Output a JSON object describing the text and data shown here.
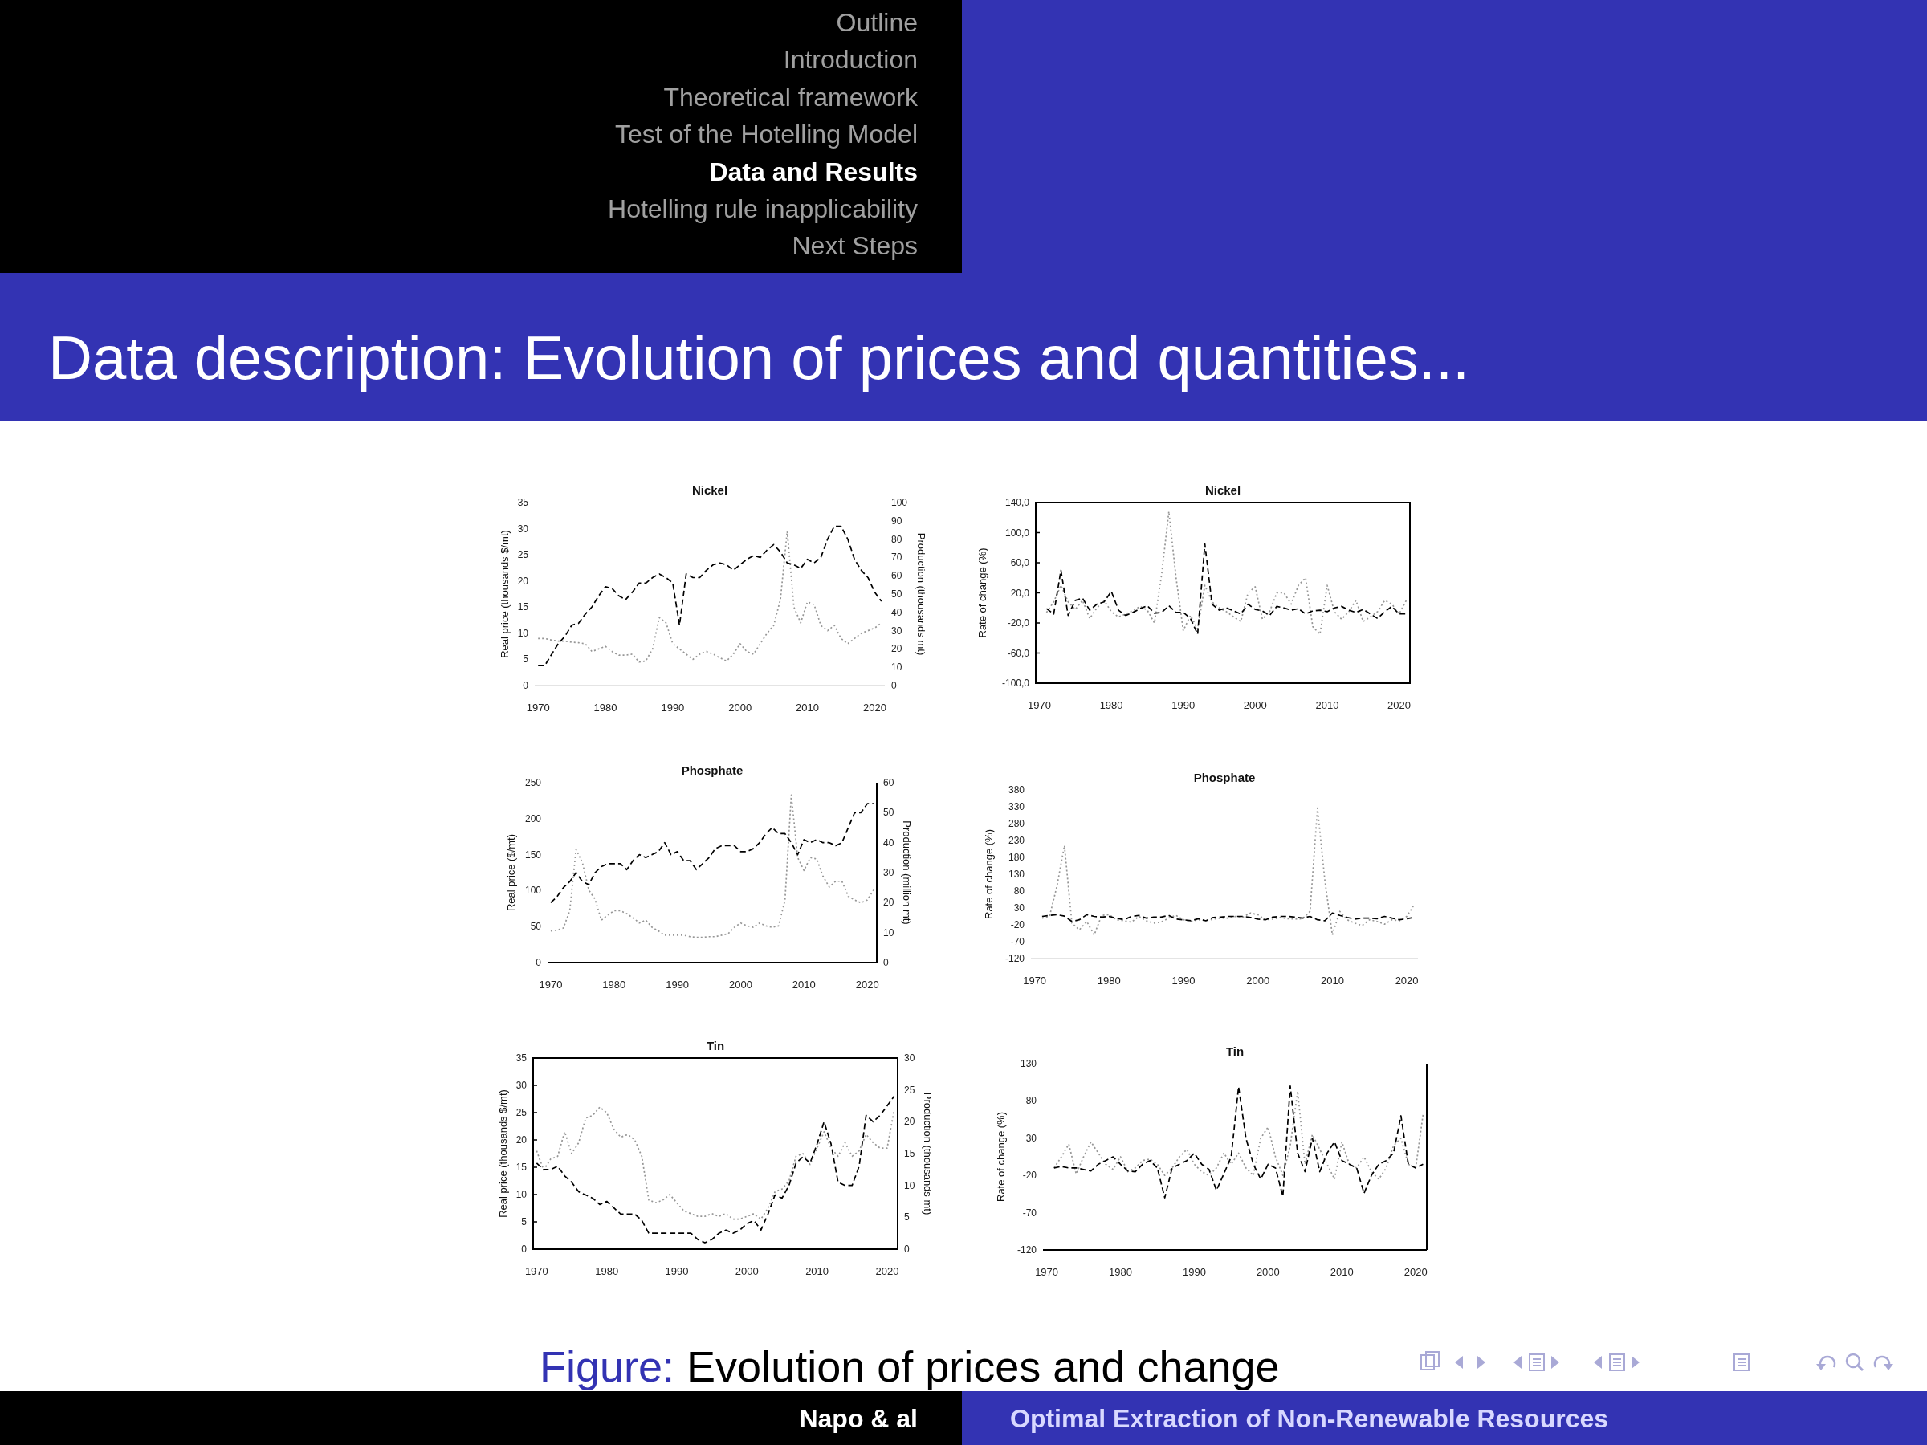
{
  "chart_data": [
    {
      "type": "other",
      "title": "Data description: Evolution of prices and quantities...",
      "annotations": [
        "Outline",
        "Introduction",
        "Theoretical framework",
        "Test of the Hotelling Model",
        "Data and Results",
        "Hotelling rule inapplicability",
        "Next Steps"
      ]
    },
    {
      "type": "line",
      "title": "Nickel",
      "ylabel": "Real price (thousands $/mt)",
      "y2label": "Production (thousands mt)",
      "x": [
        1970,
        1971,
        1972,
        1973,
        1974,
        1975,
        1976,
        1977,
        1978,
        1979,
        1980,
        1981,
        1982,
        1983,
        1984,
        1985,
        1986,
        1987,
        1988,
        1989,
        1990,
        1991,
        1992,
        1993,
        1994,
        1995,
        1996,
        1997,
        1998,
        1999,
        2000,
        2001,
        2002,
        2003,
        2004,
        2005,
        2006,
        2007,
        2008,
        2009,
        2010,
        2011,
        2012,
        2013,
        2014,
        2015,
        2016,
        2017,
        2018,
        2019,
        2020,
        2021
      ],
      "xlim": [
        1969.5,
        2021.5
      ],
      "xticks": [
        1970,
        1980,
        1990,
        2000,
        2010,
        2020
      ],
      "ylim": [
        0,
        35
      ],
      "yticks": [
        0,
        5,
        10,
        15,
        20,
        25,
        30,
        35
      ],
      "y2lim": [
        0,
        100
      ],
      "y2ticks": [
        0,
        10,
        20,
        30,
        40,
        50,
        60,
        70,
        80,
        90,
        100
      ],
      "series": [
        {
          "color": "#969696",
          "line_style": "dotted",
          "values": [
            9,
            9,
            8.7,
            8.5,
            8.5,
            8.3,
            8.2,
            8,
            6.5,
            7,
            7.5,
            6.5,
            5.8,
            5.8,
            6,
            4.5,
            4.7,
            7,
            13,
            12,
            8,
            7,
            6,
            5,
            6,
            6.5,
            6,
            5.3,
            4.7,
            6,
            8,
            6.5,
            6,
            8,
            10,
            11.5,
            16.5,
            29.5,
            15,
            12,
            16,
            15.5,
            11.5,
            10.5,
            11.5,
            9,
            8,
            9,
            10,
            10.5,
            11,
            12
          ]
        },
        {
          "color": "#000000",
          "line_style": "dashed",
          "axis": "y2",
          "values": [
            11,
            11,
            17,
            23,
            27,
            33,
            34,
            39,
            43,
            49,
            54,
            53,
            49,
            47,
            51,
            56,
            56,
            59,
            61,
            59,
            56,
            33,
            61,
            59,
            59,
            63,
            66,
            67,
            66,
            63,
            66,
            69,
            71,
            70,
            74,
            77,
            73,
            67,
            66,
            64,
            69,
            67,
            70,
            80,
            87,
            87,
            80,
            69,
            63,
            59,
            51,
            46
          ]
        }
      ]
    },
    {
      "type": "line",
      "title": "Nickel",
      "ylabel": "Rate of change (%)",
      "x": [
        1971,
        1972,
        1973,
        1974,
        1975,
        1976,
        1977,
        1978,
        1979,
        1980,
        1981,
        1982,
        1983,
        1984,
        1985,
        1986,
        1987,
        1988,
        1989,
        1990,
        1991,
        1992,
        1993,
        1994,
        1995,
        1996,
        1997,
        1998,
        1999,
        2000,
        2001,
        2002,
        2003,
        2004,
        2005,
        2006,
        2007,
        2008,
        2009,
        2010,
        2011,
        2012,
        2013,
        2014,
        2015,
        2016,
        2017,
        2018,
        2019,
        2020,
        2021
      ],
      "xlim": [
        1969.5,
        2021.5
      ],
      "xticks": [
        1970,
        1980,
        1990,
        2000,
        2010,
        2020
      ],
      "ylim": [
        -100,
        140
      ],
      "yticks": [
        {
          "value": -100,
          "label": "-100,0"
        },
        {
          "value": -60,
          "label": "-60,0"
        },
        {
          "value": -20,
          "label": "-20,0"
        },
        {
          "value": 20,
          "label": "20,0"
        },
        {
          "value": 60,
          "label": "60,0"
        },
        {
          "value": 100,
          "label": "100,0"
        },
        {
          "value": 140,
          "label": "140,0"
        }
      ],
      "series": [
        {
          "color": "#969696",
          "line_style": "dotted",
          "values": [
            -6,
            8,
            30,
            8,
            -2,
            10,
            -14,
            0,
            10,
            -5,
            -12,
            -8,
            -4,
            2,
            -3,
            -20,
            45,
            128,
            40,
            -30,
            -10,
            -28,
            30,
            8,
            0,
            -5,
            -12,
            -18,
            20,
            28,
            -15,
            -5,
            20,
            20,
            5,
            30,
            40,
            -25,
            -35,
            30,
            -5,
            -15,
            -5,
            10,
            -18,
            -12,
            -5,
            10,
            5,
            -8,
            10
          ]
        },
        {
          "color": "#000000",
          "line_style": "dashed",
          "values": [
            -1,
            -8,
            50,
            -10,
            10,
            13,
            -3,
            5,
            8,
            22,
            -3,
            -10,
            -6,
            -1,
            3,
            -7,
            -6,
            3,
            -6,
            -6,
            -14,
            -35,
            85,
            5,
            -3,
            0,
            -4,
            -8,
            5,
            -2,
            -4,
            -10,
            2,
            0,
            -3,
            -1,
            -8,
            -4,
            -3,
            -5,
            0,
            2,
            -3,
            -6,
            -2,
            -8,
            -14,
            -5,
            2,
            -8,
            -8
          ]
        }
      ]
    },
    {
      "type": "line",
      "title": "Phosphate",
      "ylabel": "Real price ($/mt)",
      "y2label": "Production (million mt)",
      "x": [
        1970,
        1971,
        1972,
        1973,
        1974,
        1975,
        1976,
        1977,
        1978,
        1979,
        1980,
        1981,
        1982,
        1983,
        1984,
        1985,
        1986,
        1987,
        1988,
        1989,
        1990,
        1991,
        1992,
        1993,
        1994,
        1995,
        1996,
        1997,
        1998,
        1999,
        2000,
        2001,
        2002,
        2003,
        2004,
        2005,
        2006,
        2007,
        2008,
        2009,
        2010,
        2011,
        2012,
        2013,
        2014,
        2015,
        2016,
        2017,
        2018,
        2019,
        2020,
        2021
      ],
      "xlim": [
        1969.5,
        2021.5
      ],
      "xticks": [
        1970,
        1980,
        1990,
        2000,
        2010,
        2020
      ],
      "ylim": [
        0,
        250
      ],
      "yticks": [
        0,
        50,
        100,
        150,
        200,
        250
      ],
      "y2lim": [
        0,
        60
      ],
      "y2ticks": [
        0,
        10,
        20,
        30,
        40,
        50,
        60
      ],
      "series": [
        {
          "color": "#969696",
          "line_style": "dotted",
          "values": [
            44,
            45,
            48,
            72,
            157,
            139,
            101,
            88,
            59,
            66,
            72,
            72,
            68,
            62,
            55,
            59,
            49,
            44,
            38,
            38,
            38,
            38,
            36,
            35,
            35,
            36,
            36,
            38,
            40,
            49,
            55,
            51,
            49,
            55,
            51,
            49,
            51,
            87,
            233,
            146,
            128,
            146,
            144,
            120,
            105,
            113,
            113,
            92,
            87,
            83,
            87,
            101
          ]
        },
        {
          "color": "#000000",
          "line_style": "dashed",
          "axis": "y2",
          "values": [
            20,
            22,
            25,
            27,
            30,
            27,
            26,
            30,
            32,
            33,
            33,
            33,
            31,
            34,
            36,
            35,
            36,
            37,
            40,
            36,
            37,
            34,
            34,
            31,
            33,
            35,
            38,
            39,
            39,
            39,
            37,
            37,
            38,
            40,
            43,
            45,
            43,
            43,
            40,
            36,
            41,
            40,
            41,
            40,
            40,
            39,
            40,
            45,
            50,
            50,
            53,
            53
          ]
        }
      ]
    },
    {
      "type": "line",
      "title": "Phosphate",
      "ylabel": "Rate of change (%)",
      "x": [
        1971,
        1972,
        1973,
        1974,
        1975,
        1976,
        1977,
        1978,
        1979,
        1980,
        1981,
        1982,
        1983,
        1984,
        1985,
        1986,
        1987,
        1988,
        1989,
        1990,
        1991,
        1992,
        1993,
        1994,
        1995,
        1996,
        1997,
        1998,
        1999,
        2000,
        2001,
        2002,
        2003,
        2004,
        2005,
        2006,
        2007,
        2008,
        2009,
        2010,
        2011,
        2012,
        2013,
        2014,
        2015,
        2016,
        2017,
        2018,
        2019,
        2020,
        2021
      ],
      "xlim": [
        1969.5,
        2021.5
      ],
      "xticks": [
        1970,
        1980,
        1990,
        2000,
        2010,
        2020
      ],
      "ylim": [
        -120,
        380
      ],
      "yticks": [
        -120,
        -70,
        -20,
        30,
        80,
        130,
        180,
        230,
        280,
        330,
        380
      ],
      "series": [
        {
          "color": "#969696",
          "line_style": "dotted",
          "values": [
            0,
            5,
            95,
            215,
            -15,
            -35,
            -10,
            -50,
            8,
            10,
            -5,
            -8,
            -12,
            5,
            -8,
            -15,
            -12,
            0,
            8,
            -5,
            -10,
            -5,
            -8,
            -3,
            0,
            0,
            5,
            3,
            15,
            10,
            -5,
            -3,
            2,
            -2,
            -3,
            -2,
            20,
            326,
            110,
            -50,
            20,
            -5,
            -15,
            -22,
            -5,
            -10,
            -18,
            -5,
            -8,
            5,
            40
          ]
        },
        {
          "color": "#000000",
          "line_style": "dashed",
          "values": [
            5,
            8,
            10,
            6,
            -10,
            -5,
            10,
            5,
            3,
            5,
            0,
            -5,
            5,
            8,
            0,
            3,
            3,
            8,
            -3,
            -5,
            -8,
            -2,
            -8,
            2,
            3,
            5,
            5,
            5,
            2,
            -3,
            -5,
            3,
            5,
            5,
            3,
            0,
            5,
            -5,
            -8,
            15,
            8,
            2,
            -3,
            0,
            0,
            -2,
            5,
            0,
            -5,
            -2,
            2
          ]
        }
      ]
    },
    {
      "type": "line",
      "title": "Tin",
      "ylabel": "Real price (thousands $/mt)",
      "y2label": "Production (thousands mt)",
      "x": [
        1970,
        1971,
        1972,
        1973,
        1974,
        1975,
        1976,
        1977,
        1978,
        1979,
        1980,
        1981,
        1982,
        1983,
        1984,
        1985,
        1986,
        1987,
        1988,
        1989,
        1990,
        1991,
        1992,
        1993,
        1994,
        1995,
        1996,
        1997,
        1998,
        1999,
        2000,
        2001,
        2002,
        2003,
        2004,
        2005,
        2006,
        2007,
        2008,
        2009,
        2010,
        2011,
        2012,
        2013,
        2014,
        2015,
        2016,
        2017,
        2018,
        2019,
        2020,
        2021
      ],
      "xlim": [
        1969.5,
        2021.5
      ],
      "xticks": [
        1970,
        1980,
        1990,
        2000,
        2010,
        2020
      ],
      "ylim": [
        0,
        35
      ],
      "yticks": [
        0,
        5,
        10,
        15,
        20,
        25,
        30,
        35
      ],
      "y2lim": [
        0,
        30
      ],
      "y2ticks": [
        0,
        5,
        10,
        15,
        20,
        25,
        30
      ],
      "series": [
        {
          "color": "#969696",
          "line_style": "dotted",
          "values": [
            18,
            14.5,
            16.5,
            17,
            21.5,
            17.5,
            19.5,
            24,
            24.5,
            26,
            25,
            22,
            20.5,
            21,
            20,
            17,
            9,
            8.5,
            9,
            10,
            8.5,
            7,
            6.5,
            6,
            6,
            6.5,
            6,
            6.5,
            5.5,
            5.5,
            6,
            6.5,
            5.5,
            7.5,
            10.5,
            11,
            12.5,
            17,
            17.5,
            15.5,
            18.5,
            21.5,
            18.5,
            17,
            19.5,
            17,
            18,
            21,
            19.5,
            18.5,
            18.5,
            25.5
          ]
        },
        {
          "color": "#000000",
          "line_style": "dashed",
          "axis": "y2",
          "values": [
            13.5,
            12.5,
            12.5,
            13,
            11.5,
            10.5,
            9,
            8.5,
            8,
            7,
            7.5,
            6.5,
            5.5,
            5.5,
            5.5,
            4.5,
            2.5,
            2.5,
            2.5,
            2.5,
            2.5,
            2.5,
            2.5,
            1.5,
            1,
            1.5,
            2.5,
            3,
            2.5,
            3,
            4,
            4.5,
            3,
            5.5,
            8.5,
            8,
            10,
            13.5,
            14.5,
            13.5,
            16.5,
            20,
            16.5,
            10.5,
            10,
            10,
            13,
            21,
            20,
            21,
            22.5,
            24
          ]
        }
      ]
    },
    {
      "type": "line",
      "title": "Tin",
      "ylabel": "Rate of change (%)",
      "x": [
        1971,
        1972,
        1973,
        1974,
        1975,
        1976,
        1977,
        1978,
        1979,
        1980,
        1981,
        1982,
        1983,
        1984,
        1985,
        1986,
        1987,
        1988,
        1989,
        1990,
        1991,
        1992,
        1993,
        1994,
        1995,
        1996,
        1997,
        1998,
        1999,
        2000,
        2001,
        2002,
        2003,
        2004,
        2005,
        2006,
        2007,
        2008,
        2009,
        2010,
        2011,
        2012,
        2013,
        2014,
        2015,
        2016,
        2017,
        2018,
        2019,
        2020,
        2021
      ],
      "xlim": [
        1969.5,
        2021.5
      ],
      "xticks": [
        1970,
        1980,
        1990,
        2000,
        2010,
        2020
      ],
      "ylim": [
        -120,
        130
      ],
      "yticks": [
        -120,
        -70,
        -20,
        30,
        80,
        130
      ],
      "series": [
        {
          "color": "#969696",
          "line_style": "dotted",
          "values": [
            -10,
            5,
            22,
            -18,
            5,
            25,
            10,
            -5,
            -12,
            5,
            -15,
            -10,
            0,
            2,
            -5,
            -20,
            -10,
            5,
            15,
            -5,
            -15,
            -20,
            -10,
            10,
            -5,
            10,
            -10,
            -20,
            30,
            45,
            5,
            -20,
            20,
            93,
            -5,
            35,
            15,
            -5,
            -25,
            25,
            -5,
            -10,
            5,
            -15,
            -25,
            -10,
            20,
            30,
            -5,
            -10,
            62
          ]
        },
        {
          "color": "#000000",
          "line_style": "dashed",
          "values": [
            -10,
            -8,
            -10,
            -10,
            -12,
            -14,
            -5,
            0,
            5,
            -5,
            -14,
            -15,
            -5,
            0,
            -10,
            -50,
            -10,
            -5,
            0,
            10,
            -5,
            -12,
            -40,
            -18,
            5,
            99,
            30,
            -5,
            -25,
            -5,
            -10,
            -48,
            100,
            10,
            -15,
            30,
            -15,
            10,
            25,
            0,
            -5,
            -10,
            -44,
            -20,
            -5,
            0,
            10,
            60,
            -5,
            -10,
            -5
          ]
        }
      ]
    },
    {
      "type": "other",
      "annotations": [
        "Figure: Evolution of prices and change",
        "Napo & al",
        "Optimal Extraction of Non-Renewable Resources"
      ]
    }
  ]
}
